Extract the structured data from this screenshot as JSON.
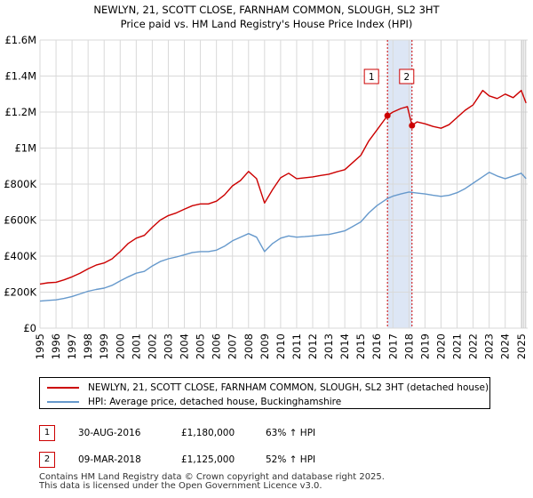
{
  "chart_data": {
    "type": "line",
    "title": "NEWLYN, 21, SCOTT CLOSE, FARNHAM COMMON, SLOUGH, SL2 3HT",
    "subtitle": "Price paid vs. HM Land Registry's House Price Index (HPI)",
    "xlim": [
      1995,
      2025.4
    ],
    "ylim": [
      0,
      1600000
    ],
    "x_ticks": [
      1995,
      1996,
      1997,
      1998,
      1999,
      2000,
      2001,
      2002,
      2003,
      2004,
      2005,
      2006,
      2007,
      2008,
      2009,
      2010,
      2011,
      2012,
      2013,
      2014,
      2015,
      2016,
      2017,
      2018,
      2019,
      2020,
      2021,
      2022,
      2023,
      2024,
      2025
    ],
    "x_tick_labels": [
      "1995",
      "1996",
      "1997",
      "1998",
      "1999",
      "2000",
      "2001",
      "2002",
      "2003",
      "2004",
      "2005",
      "2006",
      "2007",
      "2008",
      "2009",
      "2010",
      "2011",
      "2012",
      "2013",
      "2014",
      "2015",
      "2016",
      "2017",
      "2018",
      "2019",
      "2020",
      "2021",
      "2022",
      "2023",
      "2024",
      "2025"
    ],
    "y_ticks": [
      0,
      200000,
      400000,
      600000,
      800000,
      1000000,
      1200000,
      1400000,
      1600000
    ],
    "y_tick_labels": [
      "£0",
      "£200K",
      "£400K",
      "£600K",
      "£800K",
      "£1M",
      "£1.2M",
      "£1.4M",
      "£1.6M"
    ],
    "shaded_region": [
      2016.66,
      2018.19
    ],
    "series": [
      {
        "name": "NEWLYN, 21, SCOTT CLOSE, FARNHAM COMMON, SLOUGH, SL2 3HT (detached house)",
        "color": "#cc0000",
        "x": [
          1995,
          1995.5,
          1996,
          1996.5,
          1997,
          1997.5,
          1998,
          1998.5,
          1999,
          1999.5,
          2000,
          2000.5,
          2001,
          2001.5,
          2002,
          2002.5,
          2003,
          2003.5,
          2004,
          2004.5,
          2005,
          2005.5,
          2006,
          2006.5,
          2007,
          2007.5,
          2008,
          2008.5,
          2009,
          2009.5,
          2010,
          2010.5,
          2011,
          2011.5,
          2012,
          2012.5,
          2013,
          2013.5,
          2014,
          2014.5,
          2015,
          2015.5,
          2016,
          2016.66,
          2017,
          2017.5,
          2017.9,
          2018.19,
          2018.5,
          2019,
          2019.5,
          2020,
          2020.5,
          2021,
          2021.5,
          2022,
          2022.3,
          2022.6,
          2023,
          2023.5,
          2024,
          2024.5,
          2025,
          2025.3
        ],
        "y": [
          245000,
          252000,
          255000,
          268000,
          285000,
          305000,
          330000,
          350000,
          362000,
          385000,
          425000,
          470000,
          500000,
          515000,
          560000,
          600000,
          625000,
          640000,
          660000,
          680000,
          690000,
          690000,
          705000,
          740000,
          790000,
          820000,
          870000,
          830000,
          695000,
          770000,
          835000,
          860000,
          830000,
          835000,
          840000,
          848000,
          855000,
          868000,
          880000,
          920000,
          960000,
          1040000,
          1100000,
          1180000,
          1200000,
          1220000,
          1230000,
          1125000,
          1145000,
          1135000,
          1120000,
          1110000,
          1130000,
          1170000,
          1210000,
          1240000,
          1280000,
          1320000,
          1290000,
          1275000,
          1300000,
          1280000,
          1320000,
          1250000
        ]
      },
      {
        "name": "HPI: Average price, detached house, Buckinghamshire",
        "color": "#6699cc",
        "x": [
          1995,
          1995.5,
          1996,
          1996.5,
          1997,
          1997.5,
          1998,
          1998.5,
          1999,
          1999.5,
          2000,
          2000.5,
          2001,
          2001.5,
          2002,
          2002.5,
          2003,
          2003.5,
          2004,
          2004.5,
          2005,
          2005.5,
          2006,
          2006.5,
          2007,
          2007.5,
          2008,
          2008.5,
          2009,
          2009.5,
          2010,
          2010.5,
          2011,
          2011.5,
          2012,
          2012.5,
          2013,
          2013.5,
          2014,
          2014.5,
          2015,
          2015.5,
          2016,
          2016.66,
          2017,
          2017.5,
          2018,
          2018.5,
          2019,
          2019.5,
          2020,
          2020.5,
          2021,
          2021.5,
          2022,
          2022.5,
          2023,
          2023.5,
          2024,
          2024.5,
          2025,
          2025.3
        ],
        "y": [
          150000,
          154000,
          157000,
          165000,
          176000,
          190000,
          205000,
          215000,
          222000,
          238000,
          262000,
          285000,
          305000,
          315000,
          345000,
          370000,
          385000,
          395000,
          407000,
          420000,
          425000,
          425000,
          433000,
          455000,
          485000,
          505000,
          525000,
          505000,
          425000,
          470000,
          500000,
          512000,
          505000,
          508000,
          512000,
          517000,
          520000,
          530000,
          540000,
          565000,
          590000,
          640000,
          680000,
          720000,
          733000,
          745000,
          756000,
          750000,
          745000,
          738000,
          732000,
          738000,
          752000,
          775000,
          805000,
          835000,
          865000,
          845000,
          830000,
          845000,
          860000,
          830000
        ]
      }
    ],
    "annotations": [
      {
        "label": "1",
        "x": 2016.66,
        "y": 1180000
      },
      {
        "label": "2",
        "x": 2018.19,
        "y": 1125000
      }
    ]
  },
  "legend": {
    "items": [
      {
        "label": "NEWLYN, 21, SCOTT CLOSE, FARNHAM COMMON, SLOUGH, SL2 3HT (detached house)",
        "color": "#cc0000"
      },
      {
        "label": "HPI: Average price, detached house, Buckinghamshire",
        "color": "#6699cc"
      }
    ]
  },
  "sales": [
    {
      "num": "1",
      "date": "30-AUG-2016",
      "price": "£1,180,000",
      "hpi": "63% ↑ HPI"
    },
    {
      "num": "2",
      "date": "09-MAR-2018",
      "price": "£1,125,000",
      "hpi": "52% ↑ HPI"
    }
  ],
  "footer": {
    "line1": "Contains HM Land Registry data © Crown copyright and database right 2025.",
    "line2": "This data is licensed under the Open Government Licence v3.0."
  }
}
